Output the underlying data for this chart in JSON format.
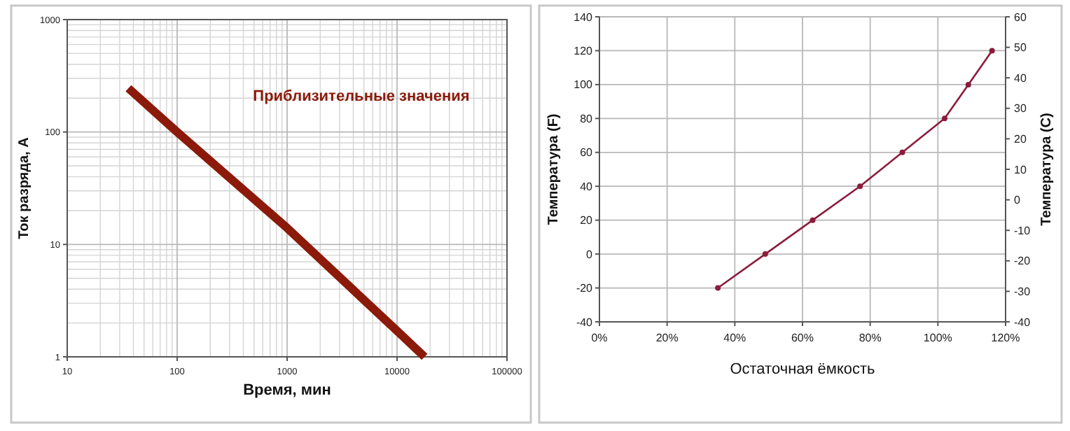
{
  "chart_data": [
    {
      "type": "line",
      "xlabel": "Время, мин",
      "ylabel": "Ток разряда, А",
      "log": "xy",
      "grid": true,
      "xlim": [
        10,
        100000
      ],
      "ylim": [
        1,
        1000
      ],
      "xticks": [
        10,
        100,
        1000,
        10000,
        100000
      ],
      "yticks": [
        1,
        10,
        100,
        1000
      ],
      "annotations": [
        "Приблизительные значения"
      ],
      "marker": "none",
      "series": [
        {
          "color": "#8b1a0a",
          "x": [
            36,
            100,
            1000,
            10000,
            17800
          ],
          "values": [
            245,
            100,
            14,
            1.7,
            1
          ]
        }
      ]
    },
    {
      "type": "line",
      "xlabel": "Остаточная ёмкость",
      "ylabel": "Температура  (F)",
      "y2label": "Температура  (C)",
      "grid": true,
      "marker": "circle",
      "xlim": [
        0,
        120
      ],
      "ylim": [
        -40,
        140
      ],
      "y2lim": [
        -40,
        60
      ],
      "xticks": [
        {
          "value": 0,
          "label": "0%"
        },
        {
          "value": 20,
          "label": "20%"
        },
        {
          "value": 40,
          "label": "40%"
        },
        {
          "value": 60,
          "label": "60%"
        },
        {
          "value": 80,
          "label": "80%"
        },
        {
          "value": 100,
          "label": "100%"
        },
        {
          "value": 120,
          "label": "120%"
        }
      ],
      "yticks": [
        -40,
        -20,
        0,
        20,
        40,
        60,
        80,
        100,
        120,
        140
      ],
      "y2ticks": [
        -40,
        -30,
        -20,
        -10,
        0,
        10,
        20,
        30,
        40,
        50,
        60
      ],
      "series": [
        {
          "color": "#8b1c3c",
          "x": [
            35,
            49,
            63,
            77,
            89.5,
            102,
            109,
            116
          ],
          "values": [
            -20,
            0,
            20,
            40,
            60,
            80,
            100,
            120
          ]
        }
      ]
    }
  ]
}
